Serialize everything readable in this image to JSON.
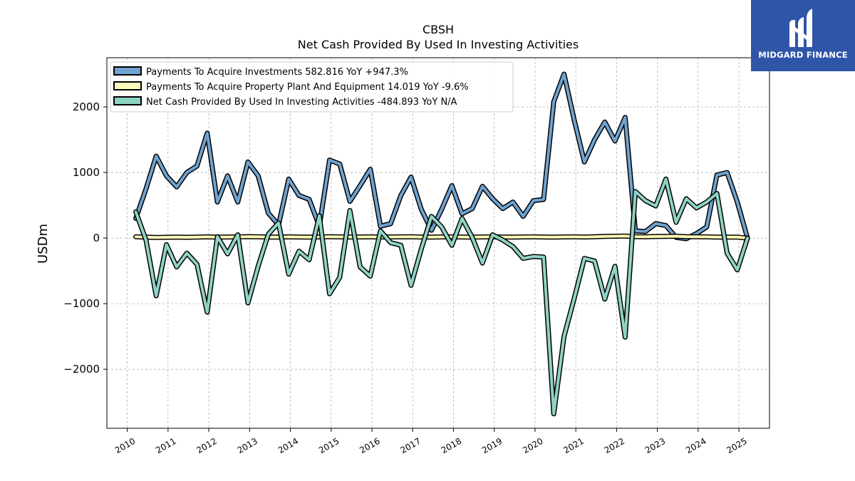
{
  "chart_data": {
    "type": "line",
    "title": "CBSH",
    "subtitle": "Net Cash Provided By Used In Investing Activities",
    "ylabel": "USDm",
    "xlim": [
      2009.5,
      2025.75
    ],
    "ylim": [
      -2900,
      2750
    ],
    "yticks": [
      -2000,
      -1000,
      0,
      1000,
      2000
    ],
    "ytick_labels": [
      "−2000",
      "−1000",
      "0",
      "1000",
      "2000"
    ],
    "xticks": [
      "2010",
      "2011",
      "2012",
      "2013",
      "2014",
      "2015",
      "2016",
      "2017",
      "2018",
      "2019",
      "2020",
      "2021",
      "2022",
      "2023",
      "2024",
      "2025"
    ],
    "grid": true,
    "legend_position": "upper-left",
    "series": [
      {
        "name": "Payments To Acquire Investments",
        "legend_label": "Payments To Acquire Investments  582.816 YoY +947.3%",
        "color": "#6fa3d0",
        "x": [
          2010.21,
          2010.46,
          2010.71,
          2010.96,
          2011.21,
          2011.46,
          2011.71,
          2011.96,
          2012.21,
          2012.46,
          2012.71,
          2012.96,
          2013.21,
          2013.46,
          2013.71,
          2013.96,
          2014.21,
          2014.46,
          2014.71,
          2014.96,
          2015.21,
          2015.46,
          2015.71,
          2015.96,
          2016.21,
          2016.46,
          2016.71,
          2016.96,
          2017.21,
          2017.46,
          2017.71,
          2017.96,
          2018.21,
          2018.46,
          2018.71,
          2018.96,
          2019.21,
          2019.46,
          2019.71,
          2019.96,
          2020.21,
          2020.46,
          2020.71,
          2020.96,
          2021.21,
          2021.46,
          2021.71,
          2021.96,
          2022.21,
          2022.46,
          2022.71,
          2022.96,
          2023.21,
          2023.46,
          2023.71,
          2023.96,
          2024.21,
          2024.46,
          2024.71,
          2024.96,
          2025.21
        ],
        "values": [
          300,
          750,
          1250,
          950,
          780,
          1000,
          1100,
          1600,
          550,
          950,
          550,
          1160,
          950,
          380,
          200,
          900,
          650,
          590,
          180,
          1190,
          1130,
          560,
          800,
          1050,
          180,
          220,
          650,
          930,
          440,
          120,
          440,
          800,
          370,
          450,
          790,
          600,
          450,
          550,
          330,
          570,
          590,
          2080,
          2500,
          1800,
          1160,
          1500,
          1770,
          1480,
          1840,
          110,
          100,
          220,
          190,
          10,
          -10,
          70,
          170,
          960,
          1000,
          550,
          0
        ]
      },
      {
        "name": "Payments To Acquire Property Plant And Equipment",
        "legend_label": "Payments To Acquire Property Plant And Equipment  14.019 YoY -9.6%",
        "color": "#fdf9b6",
        "x": [
          2010.21,
          2010.46,
          2010.71,
          2010.96,
          2011.21,
          2011.46,
          2011.71,
          2011.96,
          2012.21,
          2012.46,
          2012.71,
          2012.96,
          2013.21,
          2013.46,
          2013.71,
          2013.96,
          2014.21,
          2014.46,
          2014.71,
          2014.96,
          2015.21,
          2015.46,
          2015.71,
          2015.96,
          2016.21,
          2016.46,
          2016.71,
          2016.96,
          2017.21,
          2017.46,
          2017.71,
          2017.96,
          2018.21,
          2018.46,
          2018.71,
          2018.96,
          2019.21,
          2019.46,
          2019.71,
          2019.96,
          2020.21,
          2020.46,
          2020.71,
          2020.96,
          2021.21,
          2021.46,
          2021.71,
          2021.96,
          2022.21,
          2022.46,
          2022.71,
          2022.96,
          2023.21,
          2023.46,
          2023.71,
          2023.96,
          2024.21,
          2024.46,
          2024.71,
          2024.96,
          2025.21
        ],
        "values": [
          20,
          15,
          10,
          12,
          14,
          12,
          15,
          18,
          14,
          16,
          18,
          22,
          20,
          15,
          14,
          18,
          16,
          15,
          17,
          20,
          18,
          16,
          17,
          18,
          16,
          17,
          18,
          19,
          16,
          15,
          17,
          18,
          16,
          15,
          17,
          18,
          16,
          15,
          17,
          18,
          16,
          15,
          17,
          18,
          16,
          20,
          25,
          28,
          30,
          22,
          20,
          24,
          26,
          28,
          22,
          20,
          18,
          15,
          14,
          14,
          0
        ]
      },
      {
        "name": "Net Cash Provided By Used In Investing Activities",
        "legend_label": "Net Cash Provided By Used In Investing Activities  -484.893 YoY N/A",
        "color": "#8fd3c5",
        "x": [
          2010.21,
          2010.46,
          2010.71,
          2010.96,
          2011.21,
          2011.46,
          2011.71,
          2011.96,
          2012.21,
          2012.46,
          2012.71,
          2012.96,
          2013.21,
          2013.46,
          2013.71,
          2013.96,
          2014.21,
          2014.46,
          2014.71,
          2014.96,
          2015.21,
          2015.46,
          2015.71,
          2015.96,
          2016.21,
          2016.46,
          2016.71,
          2016.96,
          2017.21,
          2017.46,
          2017.71,
          2017.96,
          2018.21,
          2018.46,
          2018.71,
          2018.96,
          2019.21,
          2019.46,
          2019.71,
          2019.96,
          2020.21,
          2020.46,
          2020.71,
          2020.96,
          2021.21,
          2021.46,
          2021.71,
          2021.96,
          2022.21,
          2022.46,
          2022.71,
          2022.96,
          2023.21,
          2023.46,
          2023.71,
          2023.96,
          2024.21,
          2024.46,
          2024.71,
          2024.96,
          2025.21
        ],
        "values": [
          400,
          -30,
          -880,
          -100,
          -440,
          -230,
          -400,
          -1130,
          20,
          -240,
          50,
          -990,
          -430,
          60,
          230,
          -550,
          -200,
          -330,
          340,
          -850,
          -600,
          420,
          -440,
          -580,
          110,
          -70,
          -110,
          -720,
          -170,
          330,
          170,
          -110,
          300,
          10,
          -380,
          50,
          -30,
          -130,
          -310,
          -280,
          -290,
          -2680,
          -1500,
          -920,
          -310,
          -350,
          -930,
          -430,
          -1510,
          710,
          570,
          490,
          900,
          240,
          600,
          460,
          550,
          680,
          -230,
          -485,
          0
        ]
      }
    ]
  },
  "logo": {
    "text": "MIDGARD FINANCE",
    "bg_color": "#2f55a8"
  }
}
